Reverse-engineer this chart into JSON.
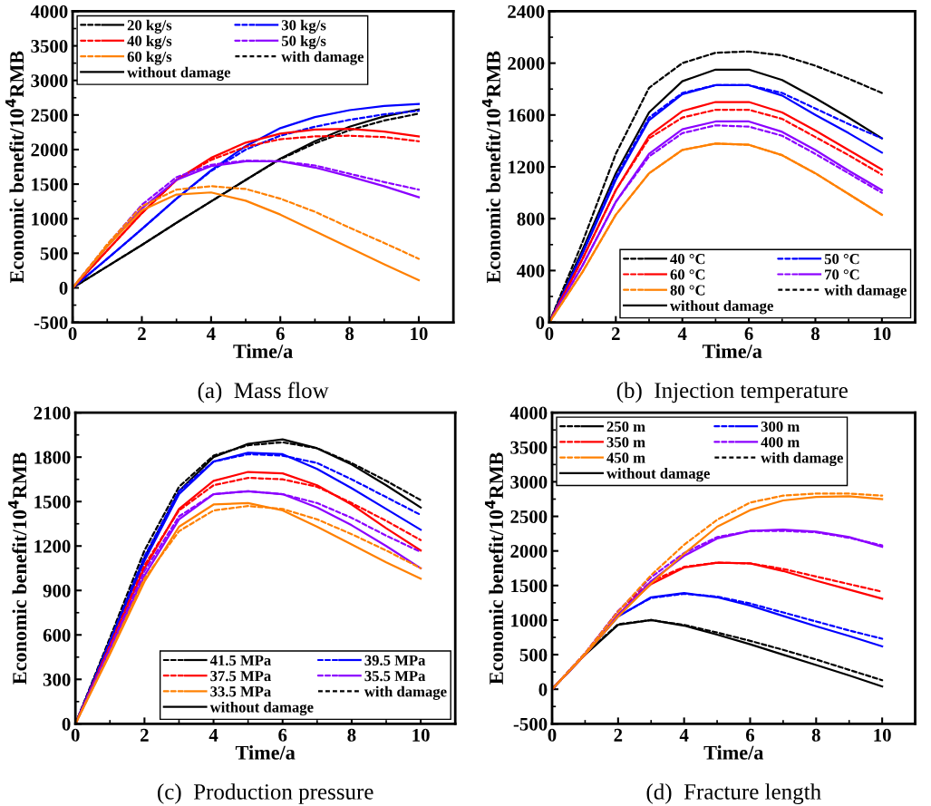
{
  "chart_data": [
    {
      "type": "line",
      "xlabel": "Time/a",
      "ylabel": "Economic benefit/10$^{4}$RMB",
      "annotations": [
        "(a)  Mass flow"
      ],
      "legend": "top left",
      "grid": false,
      "xlim": [
        0,
        11
      ],
      "xticks": [
        0,
        2,
        4,
        6,
        8,
        10
      ],
      "ylim": [
        -500,
        4000
      ],
      "yticks": [
        -500,
        0,
        500,
        1000,
        1500,
        2000,
        2500,
        3000,
        3500,
        4000
      ],
      "x": [
        0,
        1,
        2,
        3,
        4,
        5,
        6,
        7,
        8,
        9,
        10
      ],
      "series": [
        {
          "color": "#000000",
          "line_style": "dashed",
          "values": [
            0,
            310,
            620,
            940,
            1250,
            1560,
            1860,
            2090,
            2280,
            2420,
            2520
          ]
        },
        {
          "name": "20 kg/s",
          "color": "#000000",
          "line_style": "solid",
          "values": [
            0,
            310,
            620,
            940,
            1250,
            1560,
            1870,
            2120,
            2330,
            2480,
            2580
          ]
        },
        {
          "color": "#0000ff",
          "line_style": "dashed",
          "values": [
            0,
            420,
            850,
            1290,
            1690,
            2000,
            2200,
            2330,
            2430,
            2510,
            2560
          ]
        },
        {
          "name": "30 kg/s",
          "color": "#0000ff",
          "line_style": "solid",
          "values": [
            0,
            420,
            850,
            1290,
            1700,
            2050,
            2310,
            2470,
            2570,
            2630,
            2660
          ]
        },
        {
          "color": "#ff0000",
          "line_style": "dashed",
          "values": [
            0,
            540,
            1080,
            1560,
            1850,
            2040,
            2150,
            2190,
            2200,
            2180,
            2120
          ]
        },
        {
          "name": "40 kg/s",
          "color": "#ff0000",
          "line_style": "solid",
          "values": [
            0,
            540,
            1080,
            1560,
            1880,
            2100,
            2230,
            2290,
            2300,
            2260,
            2190
          ]
        },
        {
          "color": "#8b00ff",
          "line_style": "dashed",
          "values": [
            0,
            620,
            1200,
            1600,
            1780,
            1840,
            1830,
            1770,
            1650,
            1530,
            1420
          ]
        },
        {
          "name": "50 kg/s",
          "color": "#8b00ff",
          "line_style": "solid",
          "values": [
            0,
            600,
            1150,
            1560,
            1760,
            1830,
            1830,
            1740,
            1610,
            1470,
            1310
          ]
        },
        {
          "color": "#ff8000",
          "line_style": "dashed",
          "values": [
            0,
            630,
            1180,
            1420,
            1470,
            1430,
            1290,
            1100,
            870,
            650,
            420
          ]
        },
        {
          "name": "60 kg/s",
          "color": "#ff8000",
          "line_style": "solid",
          "values": [
            0,
            600,
            1120,
            1350,
            1380,
            1260,
            1060,
            820,
            580,
            340,
            110
          ]
        },
        {
          "name": "with damage",
          "color": "#000000",
          "line_style": "dashed",
          "values": [
            null,
            null,
            null,
            null,
            null,
            null,
            null,
            null,
            null,
            null,
            null
          ]
        },
        {
          "name": "without damage",
          "color": "#000000",
          "line_style": "solid",
          "values": [
            null,
            null,
            null,
            null,
            null,
            null,
            null,
            null,
            null,
            null,
            null
          ]
        }
      ]
    },
    {
      "type": "line",
      "xlabel": "Time/a",
      "ylabel": "Economic benefit/10$^{4}$RMB",
      "annotations": [
        "(b)  Injection temperature"
      ],
      "legend": "bottom right",
      "grid": false,
      "xlim": [
        0,
        11
      ],
      "xticks": [
        0,
        2,
        4,
        6,
        8,
        10
      ],
      "ylim": [
        0,
        2400
      ],
      "yticks": [
        0,
        400,
        800,
        1200,
        1600,
        2000,
        2400
      ],
      "x": [
        0,
        1,
        2,
        3,
        4,
        5,
        6,
        7,
        8,
        9,
        10
      ],
      "series": [
        {
          "color": "#000000",
          "line_style": "dashed",
          "values": [
            0,
            620,
            1300,
            1810,
            2000,
            2080,
            2090,
            2060,
            1980,
            1880,
            1770
          ]
        },
        {
          "name": "40 °C",
          "color": "#000000",
          "line_style": "solid",
          "values": [
            0,
            560,
            1150,
            1620,
            1860,
            1950,
            1950,
            1870,
            1730,
            1580,
            1420
          ]
        },
        {
          "color": "#0000ff",
          "line_style": "dashed",
          "values": [
            0,
            540,
            1120,
            1580,
            1770,
            1830,
            1830,
            1770,
            1650,
            1530,
            1420
          ]
        },
        {
          "name": "50 °C",
          "color": "#0000ff",
          "line_style": "solid",
          "values": [
            0,
            530,
            1100,
            1560,
            1760,
            1830,
            1830,
            1750,
            1600,
            1460,
            1310
          ]
        },
        {
          "color": "#ff0000",
          "line_style": "dashed",
          "values": [
            0,
            490,
            1020,
            1420,
            1580,
            1640,
            1640,
            1570,
            1430,
            1290,
            1140
          ]
        },
        {
          "name": "60 °C",
          "color": "#ff0000",
          "line_style": "solid",
          "values": [
            0,
            490,
            1020,
            1440,
            1630,
            1700,
            1700,
            1620,
            1480,
            1330,
            1180
          ]
        },
        {
          "color": "#8b00ff",
          "line_style": "dashed",
          "values": [
            0,
            440,
            930,
            1280,
            1460,
            1520,
            1510,
            1440,
            1300,
            1150,
            1000
          ]
        },
        {
          "name": "70 °C",
          "color": "#8b00ff",
          "line_style": "solid",
          "values": [
            0,
            440,
            930,
            1300,
            1490,
            1550,
            1550,
            1470,
            1330,
            1170,
            1020
          ]
        },
        {
          "color": "#ff8000",
          "line_style": "dashed",
          "values": [
            0,
            390,
            830,
            1150,
            1330,
            1380,
            1370,
            1290,
            1150,
            990,
            830
          ]
        },
        {
          "name": "80 °C",
          "color": "#ff8000",
          "line_style": "solid",
          "values": [
            0,
            390,
            830,
            1150,
            1330,
            1380,
            1370,
            1290,
            1150,
            990,
            830
          ]
        },
        {
          "name": "with damage",
          "color": "#000000",
          "line_style": "dashed",
          "values": [
            null,
            null,
            null,
            null,
            null,
            null,
            null,
            null,
            null,
            null,
            null
          ]
        },
        {
          "name": "without damage",
          "color": "#000000",
          "line_style": "solid",
          "values": [
            null,
            null,
            null,
            null,
            null,
            null,
            null,
            null,
            null,
            null,
            null
          ]
        }
      ]
    },
    {
      "type": "line",
      "xlabel": "Time/a",
      "ylabel": "Economic benefit/10$^{4}$RMB",
      "annotations": [
        "(c)  Production pressure"
      ],
      "legend": "bottom right",
      "grid": false,
      "xlim": [
        0,
        11
      ],
      "xticks": [
        0,
        2,
        4,
        6,
        8,
        10
      ],
      "ylim": [
        0,
        2100
      ],
      "yticks": [
        0,
        300,
        600,
        900,
        1200,
        1500,
        1800,
        2100
      ],
      "x": [
        0,
        1,
        2,
        3,
        4,
        5,
        6,
        7,
        8,
        9,
        10
      ],
      "series": [
        {
          "color": "#000000",
          "line_style": "dashed",
          "values": [
            0,
            580,
            1170,
            1600,
            1810,
            1880,
            1900,
            1860,
            1760,
            1640,
            1510
          ]
        },
        {
          "name": "41.5 MPa",
          "color": "#000000",
          "line_style": "solid",
          "values": [
            0,
            560,
            1120,
            1570,
            1800,
            1890,
            1920,
            1860,
            1750,
            1610,
            1460
          ]
        },
        {
          "color": "#0000ff",
          "line_style": "dashed",
          "values": [
            0,
            560,
            1130,
            1570,
            1770,
            1820,
            1810,
            1760,
            1650,
            1530,
            1410
          ]
        },
        {
          "name": "39.5 MPa",
          "color": "#0000ff",
          "line_style": "solid",
          "values": [
            0,
            550,
            1100,
            1550,
            1770,
            1830,
            1820,
            1720,
            1590,
            1450,
            1310
          ]
        },
        {
          "color": "#ff0000",
          "line_style": "dashed",
          "values": [
            0,
            530,
            1070,
            1440,
            1610,
            1660,
            1650,
            1600,
            1490,
            1370,
            1240
          ]
        },
        {
          "name": "37.5 MPa",
          "color": "#ff0000",
          "line_style": "solid",
          "values": [
            0,
            520,
            1050,
            1450,
            1640,
            1700,
            1690,
            1610,
            1480,
            1320,
            1170
          ]
        },
        {
          "color": "#8b00ff",
          "line_style": "dashed",
          "values": [
            0,
            510,
            1030,
            1400,
            1550,
            1570,
            1550,
            1490,
            1390,
            1270,
            1160
          ]
        },
        {
          "name": "35.5 MPa",
          "color": "#8b00ff",
          "line_style": "solid",
          "values": [
            0,
            500,
            1000,
            1380,
            1550,
            1570,
            1550,
            1460,
            1340,
            1200,
            1050
          ]
        },
        {
          "color": "#ff8000",
          "line_style": "dashed",
          "values": [
            0,
            480,
            980,
            1300,
            1440,
            1470,
            1450,
            1380,
            1280,
            1170,
            1050
          ]
        },
        {
          "name": "33.5 MPa",
          "color": "#ff8000",
          "line_style": "solid",
          "values": [
            0,
            470,
            960,
            1330,
            1480,
            1490,
            1440,
            1330,
            1210,
            1090,
            980
          ]
        },
        {
          "name": "with damage",
          "color": "#000000",
          "line_style": "dashed",
          "values": [
            null,
            null,
            null,
            null,
            null,
            null,
            null,
            null,
            null,
            null,
            null
          ]
        },
        {
          "name": "without damage",
          "color": "#000000",
          "line_style": "solid",
          "values": [
            null,
            null,
            null,
            null,
            null,
            null,
            null,
            null,
            null,
            null,
            null
          ]
        }
      ]
    },
    {
      "type": "line",
      "xlabel": "Time/a",
      "ylabel": "Economic benefit/10$^{4}$RMB",
      "annotations": [
        "(d)  Fracture length"
      ],
      "legend": "top left",
      "grid": false,
      "xlim": [
        0,
        11
      ],
      "xticks": [
        0,
        2,
        4,
        6,
        8,
        10
      ],
      "ylim": [
        -500,
        4000
      ],
      "yticks": [
        -500,
        0,
        500,
        1000,
        1500,
        2000,
        2500,
        3000,
        3500,
        4000
      ],
      "x": [
        0,
        1,
        2,
        3,
        4,
        5,
        6,
        7,
        8,
        9,
        10
      ],
      "series": [
        {
          "color": "#000000",
          "line_style": "dashed",
          "values": [
            0,
            510,
            940,
            1000,
            930,
            820,
            700,
            570,
            430,
            280,
            130
          ]
        },
        {
          "name": "250 m",
          "color": "#000000",
          "line_style": "solid",
          "values": [
            0,
            500,
            930,
            1000,
            920,
            790,
            650,
            500,
            350,
            200,
            40
          ]
        },
        {
          "color": "#0000ff",
          "line_style": "dashed",
          "values": [
            0,
            510,
            1060,
            1320,
            1380,
            1340,
            1240,
            1110,
            980,
            850,
            730
          ]
        },
        {
          "name": "300 m",
          "color": "#0000ff",
          "line_style": "solid",
          "values": [
            0,
            500,
            1050,
            1330,
            1390,
            1330,
            1210,
            1060,
            910,
            770,
            620
          ]
        },
        {
          "color": "#ff0000",
          "line_style": "dashed",
          "values": [
            0,
            520,
            1130,
            1560,
            1770,
            1830,
            1820,
            1740,
            1630,
            1520,
            1410
          ]
        },
        {
          "name": "350 m",
          "color": "#ff0000",
          "line_style": "solid",
          "values": [
            0,
            500,
            1080,
            1520,
            1760,
            1830,
            1820,
            1710,
            1570,
            1440,
            1310
          ]
        },
        {
          "color": "#8b00ff",
          "line_style": "dashed",
          "values": [
            0,
            520,
            1130,
            1620,
            1970,
            2200,
            2290,
            2290,
            2270,
            2190,
            2080
          ]
        },
        {
          "name": "400 m",
          "color": "#8b00ff",
          "line_style": "solid",
          "values": [
            0,
            500,
            1070,
            1560,
            1930,
            2180,
            2290,
            2310,
            2280,
            2200,
            2060
          ]
        },
        {
          "color": "#ff8000",
          "line_style": "dashed",
          "values": [
            0,
            520,
            1120,
            1650,
            2090,
            2450,
            2700,
            2800,
            2830,
            2830,
            2800
          ]
        },
        {
          "name": "450 m",
          "color": "#ff8000",
          "line_style": "solid",
          "values": [
            0,
            500,
            1050,
            1530,
            1960,
            2350,
            2590,
            2730,
            2780,
            2790,
            2750
          ]
        },
        {
          "name": "with damage",
          "color": "#000000",
          "line_style": "dashed",
          "values": [
            null,
            null,
            null,
            null,
            null,
            null,
            null,
            null,
            null,
            null,
            null
          ]
        },
        {
          "name": "without damage",
          "color": "#000000",
          "line_style": "solid",
          "values": [
            null,
            null,
            null,
            null,
            null,
            null,
            null,
            null,
            null,
            null,
            null
          ]
        }
      ]
    }
  ]
}
